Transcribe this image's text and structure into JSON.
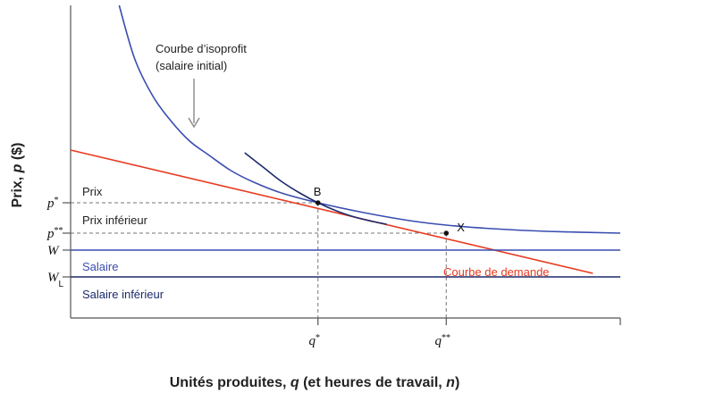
{
  "chart_data": {
    "type": "line",
    "xlabel_parts": [
      "Unités produites, ",
      "q",
      " (et heures de travail, ",
      "n",
      ")"
    ],
    "ylabel_parts": [
      "Prix, ",
      "p",
      " ($)"
    ],
    "x_ticks": [
      {
        "label": "q*",
        "base": "q",
        "sup": "*",
        "x": 270
      },
      {
        "label": "q**",
        "base": "q",
        "sup": "**",
        "x": 410
      }
    ],
    "y_ticks": [
      {
        "label": "p*",
        "base": "p",
        "sup": "*",
        "sub": "",
        "y": 129
      },
      {
        "label": "p**",
        "base": "p",
        "sup": "**",
        "sub": "",
        "y": 95
      },
      {
        "label": "W",
        "base": "W",
        "sup": "",
        "sub": "",
        "y": 76
      },
      {
        "label": "WL",
        "base": "W",
        "sup": "",
        "sub": "L",
        "y": 46
      }
    ],
    "xlim": [
      0,
      600
    ],
    "ylim": [
      0,
      350
    ],
    "series": [
      {
        "name": "Courbe de demande",
        "type": "line",
        "color": "#e8391f",
        "points": [
          [
            0,
            188
          ],
          [
            570,
            50
          ]
        ]
      },
      {
        "name": "",
        "type": "line",
        "color": "#3a4db0",
        "points": [
          [
            0,
            76
          ],
          [
            600,
            76
          ]
        ]
      },
      {
        "name": "",
        "type": "line",
        "color": "#1c2a6b",
        "points": [
          [
            0,
            46
          ],
          [
            600,
            46
          ]
        ]
      },
      {
        "name": "Courbe d’isoprofit (salaire initial)",
        "type": "curve",
        "color": "#3a4db0",
        "points": [
          [
            53,
            350
          ],
          [
            70,
            290
          ],
          [
            90,
            248
          ],
          [
            110,
            220
          ],
          [
            130,
            198
          ],
          [
            150,
            183
          ],
          [
            175,
            165
          ],
          [
            200,
            152
          ],
          [
            230,
            140
          ],
          [
            270,
            129
          ],
          [
            320,
            118
          ],
          [
            370,
            109
          ],
          [
            410,
            104
          ],
          [
            460,
            100
          ],
          [
            520,
            97
          ],
          [
            600,
            95
          ]
        ]
      },
      {
        "name": "",
        "type": "curve",
        "color": "#1c2a6b",
        "points": [
          [
            190,
            185
          ],
          [
            210,
            169
          ],
          [
            230,
            153
          ],
          [
            250,
            140
          ],
          [
            270,
            129
          ],
          [
            290,
            120
          ],
          [
            310,
            113
          ],
          [
            330,
            108
          ],
          [
            345,
            105
          ]
        ]
      }
    ],
    "points": [
      {
        "label": "B",
        "x": 270,
        "y": 129
      },
      {
        "label": "X",
        "x": 410,
        "y": 95
      }
    ],
    "region_labels": [
      "Prix",
      "Prix inférieur",
      "Salaire",
      "Salaire inférieur"
    ],
    "annotations": {
      "isoprofit": [
        "Courbe d’isoprofit",
        "(salaire initial)"
      ],
      "demand": "Courbe de demande"
    }
  }
}
